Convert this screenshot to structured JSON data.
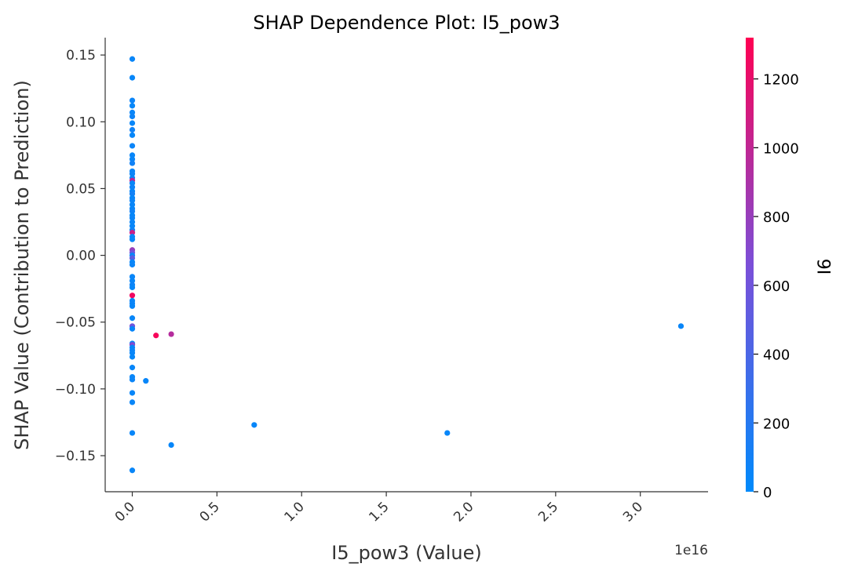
{
  "chart_data": {
    "type": "scatter",
    "title": "SHAP Dependence Plot: I5_pow3",
    "xlabel": "I5_pow3 (Value)",
    "ylabel": "SHAP Value (Contribution to Prediction)",
    "x_offset_label": "1e16",
    "x_scale": 1e+16,
    "xlim": [
      -0.16,
      3.4
    ],
    "ylim": [
      -0.177,
      0.163
    ],
    "xticks": [
      0.0,
      0.5,
      1.0,
      1.5,
      2.0,
      2.5,
      3.0
    ],
    "xtick_labels": [
      "0.0",
      "0.5",
      "1.0",
      "1.5",
      "2.0",
      "2.5",
      "3.0"
    ],
    "yticks": [
      -0.15,
      -0.1,
      -0.05,
      0.0,
      0.05,
      0.1,
      0.15
    ],
    "ytick_labels": [
      "−0.15",
      "−0.10",
      "−0.05",
      "0.00",
      "0.05",
      "0.10",
      "0.15"
    ],
    "colorbar": {
      "label": "I6",
      "range": [
        0,
        1320
      ],
      "ticks": [
        0,
        200,
        400,
        600,
        800,
        1000,
        1200
      ],
      "tick_labels": [
        "0",
        "200",
        "400",
        "600",
        "800",
        "1000",
        "1200"
      ],
      "color_low": "#008afb",
      "color_mid": "#7b4fd8",
      "color_high": "#ff0052"
    },
    "grid": false,
    "points": [
      {
        "x": 0.0,
        "y": 0.147,
        "c": 50
      },
      {
        "x": 0.0,
        "y": 0.133,
        "c": 40
      },
      {
        "x": 0.0,
        "y": 0.116,
        "c": 60
      },
      {
        "x": 0.0,
        "y": 0.112,
        "c": 30
      },
      {
        "x": 0.0,
        "y": 0.107,
        "c": 50
      },
      {
        "x": 0.0,
        "y": 0.104,
        "c": 70
      },
      {
        "x": 0.0,
        "y": 0.099,
        "c": 40
      },
      {
        "x": 0.0,
        "y": 0.094,
        "c": 80
      },
      {
        "x": 0.0,
        "y": 0.09,
        "c": 30
      },
      {
        "x": 0.0,
        "y": 0.082,
        "c": 60
      },
      {
        "x": 0.0,
        "y": 0.075,
        "c": 40
      },
      {
        "x": 0.0,
        "y": 0.072,
        "c": 50
      },
      {
        "x": 0.0,
        "y": 0.069,
        "c": 90
      },
      {
        "x": 0.0,
        "y": 0.063,
        "c": 40
      },
      {
        "x": 0.0,
        "y": 0.061,
        "c": 60
      },
      {
        "x": 0.0,
        "y": 0.058,
        "c": 30
      },
      {
        "x": 0.0,
        "y": 0.056,
        "c": 1000
      },
      {
        "x": 0.0,
        "y": 0.054,
        "c": 50
      },
      {
        "x": 0.0,
        "y": 0.051,
        "c": 70
      },
      {
        "x": 0.0,
        "y": 0.048,
        "c": 40
      },
      {
        "x": 0.0,
        "y": 0.046,
        "c": 100
      },
      {
        "x": 0.0,
        "y": 0.043,
        "c": 30
      },
      {
        "x": 0.0,
        "y": 0.041,
        "c": 60
      },
      {
        "x": 0.0,
        "y": 0.038,
        "c": 50
      },
      {
        "x": 0.0,
        "y": 0.035,
        "c": 40
      },
      {
        "x": 0.0,
        "y": 0.033,
        "c": 80
      },
      {
        "x": 0.0,
        "y": 0.03,
        "c": 30
      },
      {
        "x": 0.0,
        "y": 0.028,
        "c": 60
      },
      {
        "x": 0.0,
        "y": 0.025,
        "c": 50
      },
      {
        "x": 0.0,
        "y": 0.022,
        "c": 40
      },
      {
        "x": 0.0,
        "y": 0.019,
        "c": 70
      },
      {
        "x": 0.0,
        "y": 0.017,
        "c": 1050
      },
      {
        "x": 0.0,
        "y": 0.014,
        "c": 50
      },
      {
        "x": 0.0,
        "y": 0.012,
        "c": 40
      },
      {
        "x": 0.0,
        "y": 0.004,
        "c": 800
      },
      {
        "x": 0.0,
        "y": 0.002,
        "c": 600
      },
      {
        "x": 0.0,
        "y": 0.0,
        "c": 50
      },
      {
        "x": 0.0,
        "y": -0.002,
        "c": 500
      },
      {
        "x": 0.0,
        "y": -0.005,
        "c": 40
      },
      {
        "x": 0.0,
        "y": -0.007,
        "c": 60
      },
      {
        "x": 0.0,
        "y": -0.016,
        "c": 50
      },
      {
        "x": 0.0,
        "y": -0.019,
        "c": 40
      },
      {
        "x": 0.0,
        "y": -0.022,
        "c": 70
      },
      {
        "x": 0.0,
        "y": -0.024,
        "c": 30
      },
      {
        "x": 0.0,
        "y": -0.03,
        "c": 1250
      },
      {
        "x": 0.0,
        "y": -0.034,
        "c": 50
      },
      {
        "x": 0.0,
        "y": -0.036,
        "c": 60
      },
      {
        "x": 0.0,
        "y": -0.038,
        "c": 40
      },
      {
        "x": 0.0,
        "y": -0.047,
        "c": 50
      },
      {
        "x": 0.0,
        "y": -0.053,
        "c": 600
      },
      {
        "x": 0.0,
        "y": -0.055,
        "c": 40
      },
      {
        "x": 0.0,
        "y": -0.066,
        "c": 50
      },
      {
        "x": 0.0,
        "y": -0.067,
        "c": 700
      },
      {
        "x": 0.0,
        "y": -0.069,
        "c": 40
      },
      {
        "x": 0.0,
        "y": -0.071,
        "c": 60
      },
      {
        "x": 0.0,
        "y": -0.073,
        "c": 50
      },
      {
        "x": 0.0,
        "y": -0.076,
        "c": 30
      },
      {
        "x": 0.0,
        "y": -0.084,
        "c": 40
      },
      {
        "x": 0.0,
        "y": -0.091,
        "c": 50
      },
      {
        "x": 0.0,
        "y": -0.093,
        "c": 60
      },
      {
        "x": 0.0,
        "y": -0.103,
        "c": 40
      },
      {
        "x": 0.0,
        "y": -0.11,
        "c": 50
      },
      {
        "x": 0.0,
        "y": -0.133,
        "c": 40
      },
      {
        "x": 0.0,
        "y": -0.161,
        "c": 50
      },
      {
        "x": 0.08,
        "y": -0.094,
        "c": 40
      },
      {
        "x": 0.14,
        "y": -0.06,
        "c": 1280
      },
      {
        "x": 0.23,
        "y": -0.059,
        "c": 950
      },
      {
        "x": 0.23,
        "y": -0.142,
        "c": 40
      },
      {
        "x": 0.72,
        "y": -0.127,
        "c": 40
      },
      {
        "x": 1.86,
        "y": -0.133,
        "c": 40
      },
      {
        "x": 3.24,
        "y": -0.053,
        "c": 50
      }
    ]
  }
}
